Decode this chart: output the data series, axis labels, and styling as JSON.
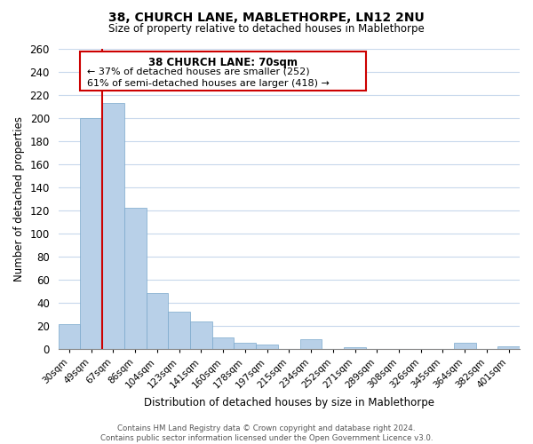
{
  "title1": "38, CHURCH LANE, MABLETHORPE, LN12 2NU",
  "title2": "Size of property relative to detached houses in Mablethorpe",
  "xlabel": "Distribution of detached houses by size in Mablethorpe",
  "ylabel": "Number of detached properties",
  "bar_labels": [
    "30sqm",
    "49sqm",
    "67sqm",
    "86sqm",
    "104sqm",
    "123sqm",
    "141sqm",
    "160sqm",
    "178sqm",
    "197sqm",
    "215sqm",
    "234sqm",
    "252sqm",
    "271sqm",
    "289sqm",
    "308sqm",
    "326sqm",
    "345sqm",
    "364sqm",
    "382sqm",
    "401sqm"
  ],
  "bar_values": [
    21,
    200,
    213,
    122,
    48,
    32,
    24,
    10,
    5,
    4,
    0,
    8,
    0,
    1,
    0,
    0,
    0,
    0,
    5,
    0,
    2
  ],
  "bar_color": "#b8d0e8",
  "bar_edge_color": "#7aa8cc",
  "vline_color": "#cc0000",
  "vline_index": 2,
  "ylim": [
    0,
    260
  ],
  "yticks": [
    0,
    20,
    40,
    60,
    80,
    100,
    120,
    140,
    160,
    180,
    200,
    220,
    240,
    260
  ],
  "annotation_title": "38 CHURCH LANE: 70sqm",
  "annotation_line1": "← 37% of detached houses are smaller (252)",
  "annotation_line2": "61% of semi-detached houses are larger (418) →",
  "footer1": "Contains HM Land Registry data © Crown copyright and database right 2024.",
  "footer2": "Contains public sector information licensed under the Open Government Licence v3.0.",
  "background_color": "#ffffff",
  "grid_color": "#c8d8ec"
}
